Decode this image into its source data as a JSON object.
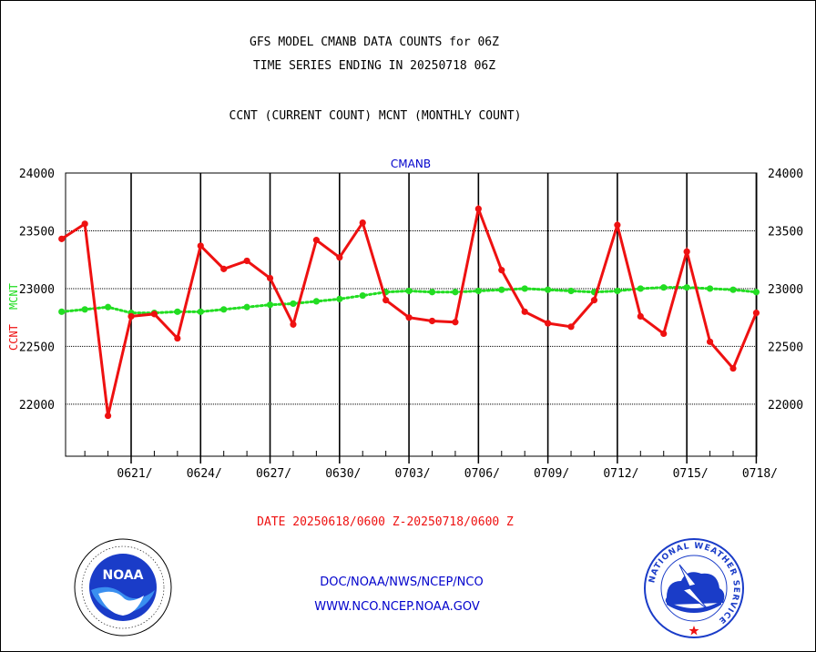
{
  "header": {
    "title_line1": "GFS MODEL CMANB DATA COUNTS for 06Z",
    "title_line2": "TIME SERIES ENDING IN 20250718 06Z",
    "subtitle": "CCNT (CURRENT COUNT) MCNT (MONTHLY COUNT)"
  },
  "footer": {
    "date_range": "DATE 20250618/0600 Z-20250718/0600 Z",
    "org_path": "DOC/NOAA/NWS/NCEP/NCO",
    "website": "WWW.NCO.NCEP.NOAA.GOV",
    "noaa_logo_text": "NOAA",
    "nws_logo_text": "NATIONAL WEATHER SERVICE"
  },
  "colors": {
    "ccnt": "#ee1111",
    "mcnt": "#22dd22",
    "plot_label": "#0000cc"
  },
  "chart_data": {
    "type": "line",
    "title": "CMANB",
    "ylabel_ccnt": "CCNT",
    "ylabel_mcnt": "MCNT",
    "xlabel": "DATE 20250618/0600 Z-20250718/0600 Z",
    "ylim": [
      21550,
      24000
    ],
    "yticks": [
      22000,
      22500,
      23000,
      23500,
      24000
    ],
    "xlim": [
      0,
      30
    ],
    "xticks": [
      {
        "x": 3,
        "label": "0621/"
      },
      {
        "x": 6,
        "label": "0624/"
      },
      {
        "x": 9,
        "label": "0627/"
      },
      {
        "x": 12,
        "label": "0630/"
      },
      {
        "x": 15,
        "label": "0703/"
      },
      {
        "x": 18,
        "label": "0706/"
      },
      {
        "x": 21,
        "label": "0709/"
      },
      {
        "x": 24,
        "label": "0712/"
      },
      {
        "x": 27,
        "label": "0715/"
      },
      {
        "x": 30,
        "label": "0718/"
      }
    ],
    "series": [
      {
        "name": "CCNT",
        "x": [
          0,
          1,
          2,
          3,
          4,
          5,
          6,
          7,
          8,
          9,
          10,
          11,
          12,
          13,
          14,
          15,
          16,
          17,
          18,
          19,
          20,
          21,
          22,
          23,
          24,
          25,
          26,
          27,
          28,
          29,
          30
        ],
        "values": [
          23430,
          23560,
          21900,
          22760,
          22780,
          22570,
          23370,
          23170,
          23240,
          23090,
          22690,
          23420,
          23270,
          23570,
          22900,
          22750,
          22720,
          22710,
          23690,
          23160,
          22800,
          22700,
          22670,
          22900,
          23550,
          22760,
          22610,
          23320,
          22540,
          22310,
          22790
        ]
      },
      {
        "name": "MCNT",
        "x": [
          0,
          1,
          2,
          3,
          4,
          5,
          6,
          7,
          8,
          9,
          10,
          11,
          12,
          13,
          14,
          15,
          16,
          17,
          18,
          19,
          20,
          21,
          22,
          23,
          24,
          25,
          26,
          27,
          28,
          29,
          30
        ],
        "values": [
          22800,
          22820,
          22840,
          22790,
          22790,
          22800,
          22800,
          22820,
          22840,
          22860,
          22870,
          22890,
          22910,
          22940,
          22970,
          22980,
          22970,
          22970,
          22980,
          22990,
          23000,
          22990,
          22980,
          22970,
          22980,
          23000,
          23010,
          23010,
          23000,
          22990,
          22970
        ]
      }
    ]
  }
}
